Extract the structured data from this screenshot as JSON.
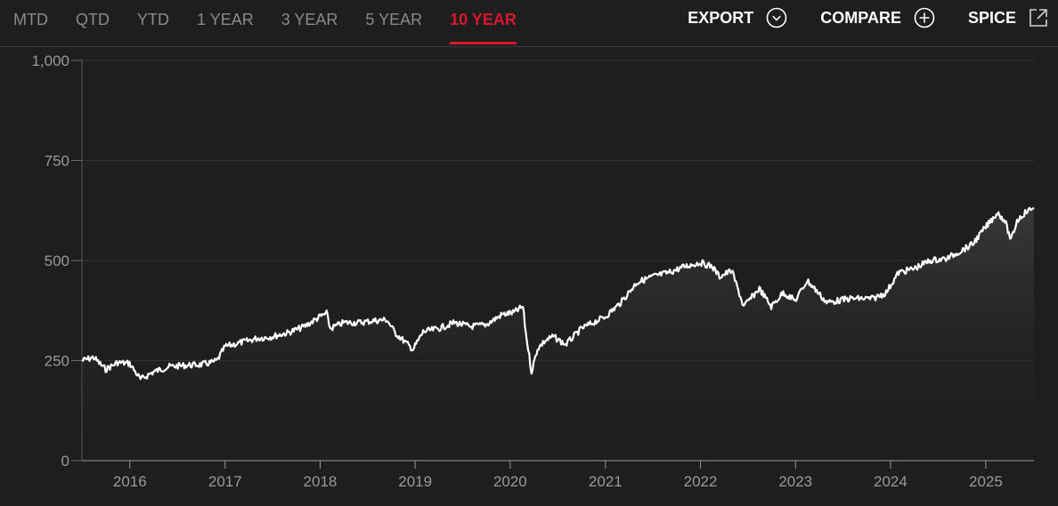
{
  "toolbar": {
    "tabs": [
      {
        "label": "MTD",
        "active": false
      },
      {
        "label": "QTD",
        "active": false
      },
      {
        "label": "YTD",
        "active": false
      },
      {
        "label": "1 YEAR",
        "active": false
      },
      {
        "label": "3 YEAR",
        "active": false
      },
      {
        "label": "5 YEAR",
        "active": false
      },
      {
        "label": "10 YEAR",
        "active": true
      }
    ],
    "actions": {
      "export_label": "EXPORT",
      "export_icon": "chevron-down-circle-icon",
      "compare_label": "COMPARE",
      "compare_icon": "plus-circle-icon",
      "spice_label": "SPICE",
      "spice_icon": "external-link-icon"
    }
  },
  "colors": {
    "background": "#1e1e1e",
    "active_tab": "#d6182f",
    "line": "#ffffff",
    "muted_text": "#8a8a8a"
  },
  "chart_data": {
    "type": "line",
    "title": "",
    "xlabel": "",
    "ylabel": "",
    "ylim": [
      0,
      1000
    ],
    "xlim": [
      "2015-07-01",
      "2025-07-05"
    ],
    "y_ticks": [
      0,
      250,
      500,
      750,
      1000
    ],
    "y_tick_labels": [
      "0",
      "250",
      "500",
      "750",
      "1,000"
    ],
    "x_ticks": [
      "2016-01-01",
      "2017-01-01",
      "2018-01-01",
      "2019-01-01",
      "2020-01-01",
      "2021-01-01",
      "2022-01-01",
      "2023-01-01",
      "2024-01-01",
      "2025-01-01"
    ],
    "x_tick_labels": [
      "2016",
      "2017",
      "2018",
      "2019",
      "2020",
      "2021",
      "2022",
      "2023",
      "2024",
      "2025"
    ],
    "grid": true,
    "area_fill": true,
    "series": [
      {
        "x": [
          "2015-07-01",
          "2015-08-15",
          "2015-09-30",
          "2015-11-15",
          "2015-12-31",
          "2016-02-11",
          "2016-04-01",
          "2016-06-01",
          "2016-08-01",
          "2016-10-01",
          "2016-11-10",
          "2016-12-01",
          "2017-01-01",
          "2017-03-01",
          "2017-05-01",
          "2017-07-01",
          "2017-09-01",
          "2017-11-01",
          "2018-01-01",
          "2018-01-26",
          "2018-02-09",
          "2018-04-01",
          "2018-06-01",
          "2018-08-01",
          "2018-09-15",
          "2018-10-15",
          "2018-12-24",
          "2019-02-01",
          "2019-04-01",
          "2019-06-01",
          "2019-08-01",
          "2019-10-01",
          "2019-12-01",
          "2020-01-15",
          "2020-02-19",
          "2020-03-01",
          "2020-03-23",
          "2020-04-15",
          "2020-05-15",
          "2020-06-15",
          "2020-08-01",
          "2020-10-01",
          "2020-11-15",
          "2021-01-01",
          "2021-03-01",
          "2021-05-01",
          "2021-07-01",
          "2021-09-01",
          "2021-11-01",
          "2021-12-31",
          "2022-02-15",
          "2022-03-15",
          "2022-05-01",
          "2022-06-16",
          "2022-08-15",
          "2022-09-30",
          "2022-11-15",
          "2022-12-31",
          "2023-02-15",
          "2023-03-15",
          "2023-05-01",
          "2023-07-31",
          "2023-10-27",
          "2023-12-15",
          "2024-02-01",
          "2024-04-01",
          "2024-06-01",
          "2024-08-05",
          "2024-09-15",
          "2024-11-10",
          "2024-12-15",
          "2025-02-15",
          "2025-03-15",
          "2025-04-08",
          "2025-05-01",
          "2025-06-01",
          "2025-07-05"
        ],
        "values": [
          250,
          258,
          228,
          245,
          243,
          203,
          222,
          235,
          238,
          240,
          245,
          250,
          285,
          295,
          305,
          310,
          320,
          335,
          360,
          368,
          330,
          345,
          345,
          350,
          352,
          320,
          278,
          322,
          330,
          345,
          335,
          340,
          365,
          370,
          385,
          320,
          222,
          280,
          300,
          310,
          290,
          330,
          345,
          360,
          395,
          445,
          460,
          470,
          485,
          495,
          485,
          460,
          475,
          385,
          430,
          385,
          420,
          400,
          450,
          430,
          395,
          405,
          405,
          420,
          470,
          480,
          500,
          505,
          520,
          540,
          570,
          620,
          600,
          550,
          600,
          620,
          632
        ]
      }
    ]
  }
}
